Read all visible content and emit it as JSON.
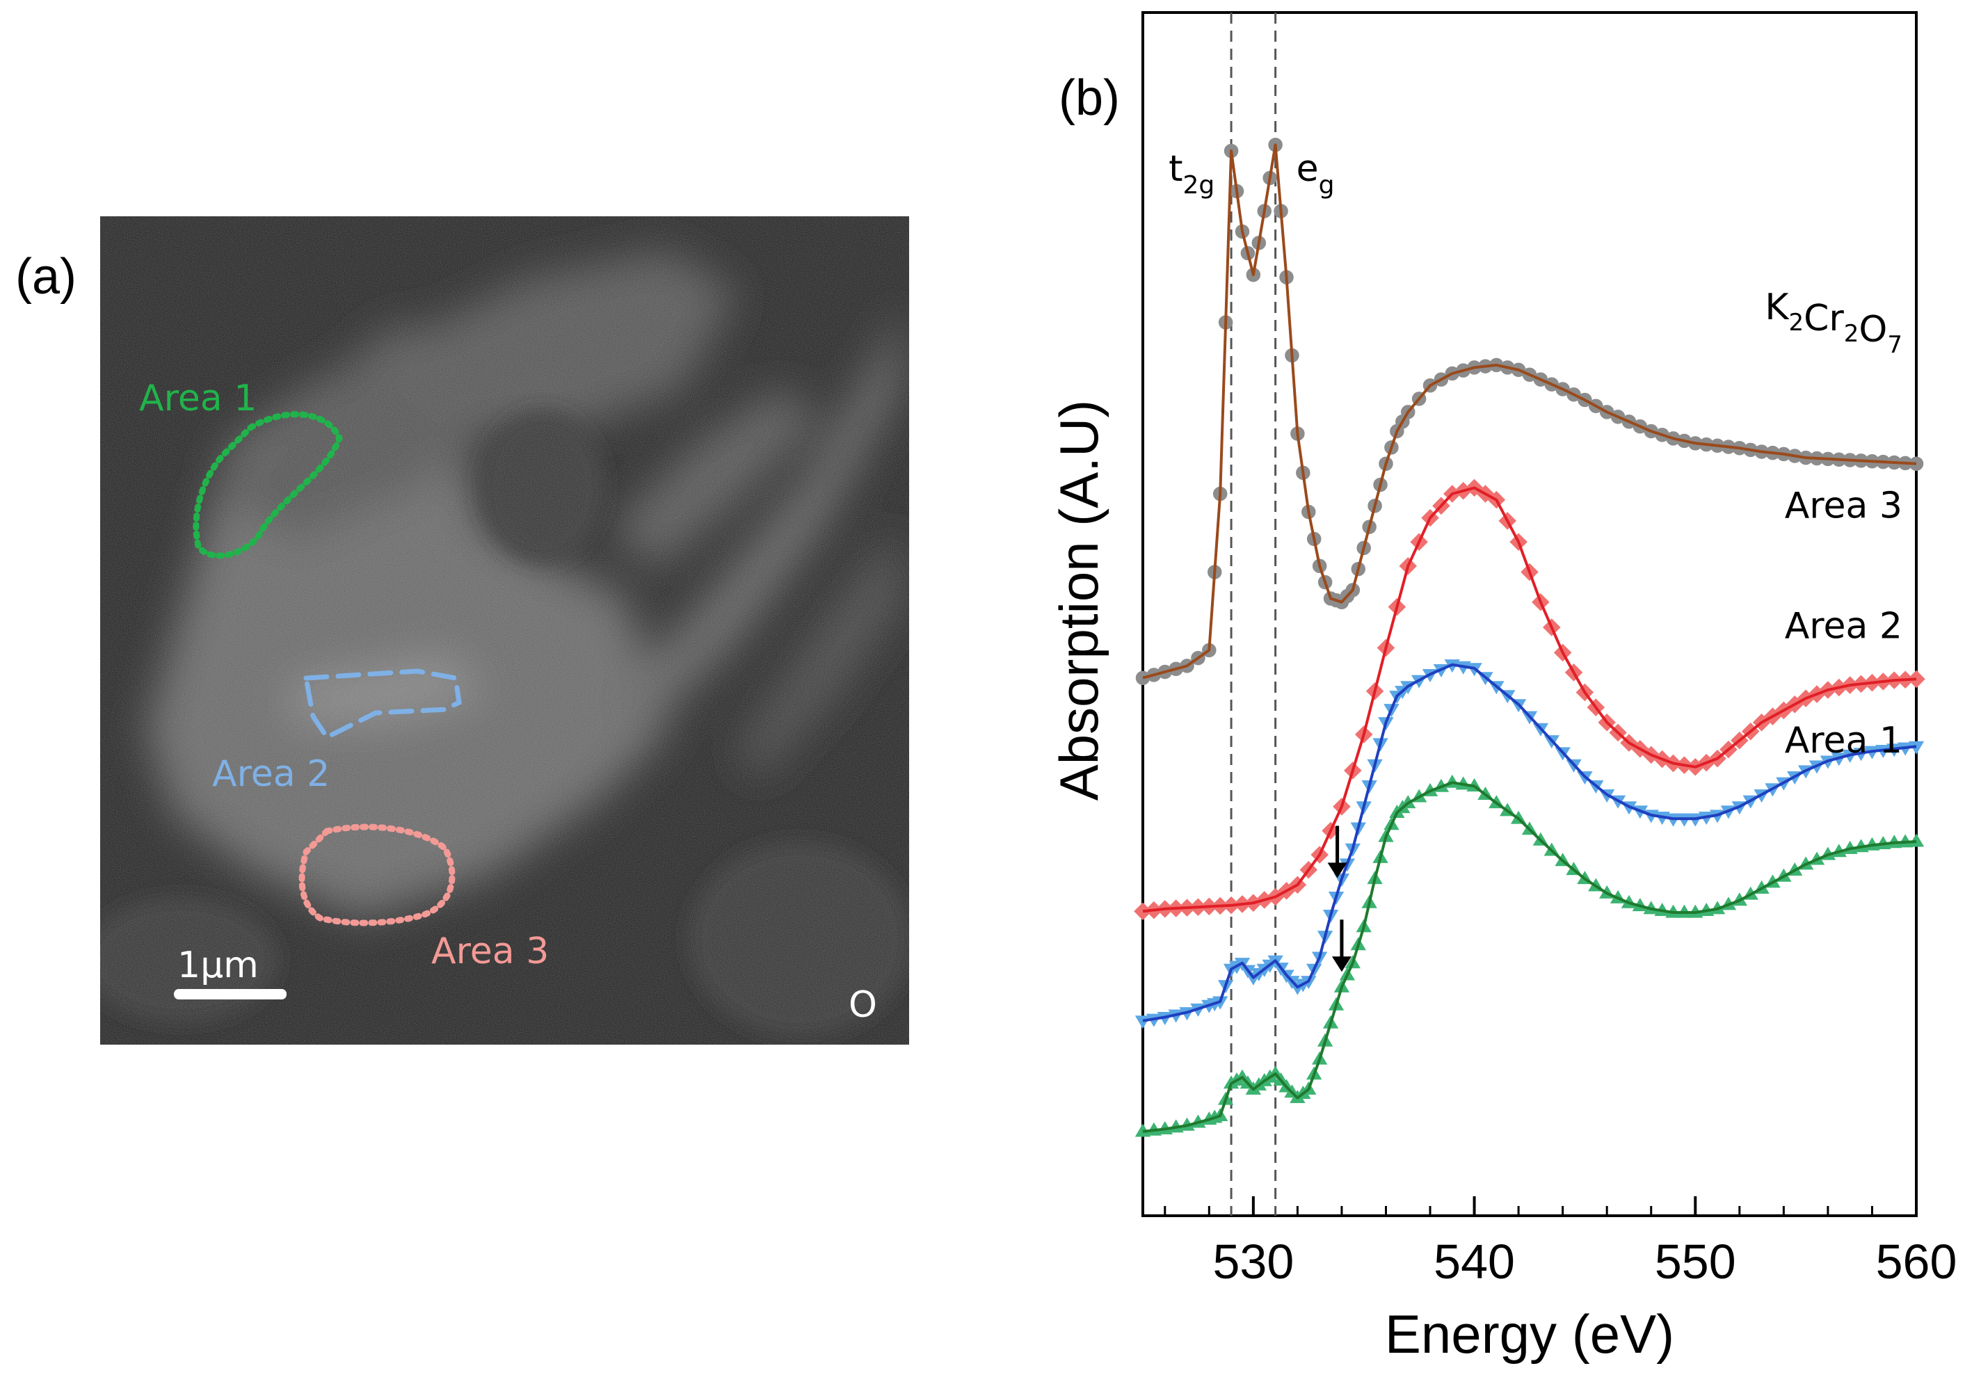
{
  "panel_a": {
    "label": "(a)",
    "scale_bar_label": "1µm",
    "element_label": "O",
    "regions": [
      {
        "name": "Area 1",
        "color": "#21b34b",
        "style": "dotted"
      },
      {
        "name": "Area 2",
        "color": "#7fb1e6",
        "style": "dashed"
      },
      {
        "name": "Area 3",
        "color": "#f39a96",
        "style": "dotted"
      }
    ]
  },
  "chart_data": {
    "type": "line",
    "panel_label": "(b)",
    "xlabel": "Energy (eV)",
    "ylabel": "Absorption (A.U)",
    "xlim": [
      525,
      560
    ],
    "ylim": [
      0,
      1
    ],
    "xticks": [
      530,
      540,
      550,
      560
    ],
    "reference_lines": [
      {
        "x": 529.0,
        "label": "t",
        "sub": "2g"
      },
      {
        "x": 531.0,
        "label": "e",
        "sub": "g"
      }
    ],
    "arrows": [
      {
        "x": 533.8,
        "series": "Area 2"
      },
      {
        "x": 534.0,
        "series": "Area 1"
      }
    ],
    "series": [
      {
        "name": "K2Cr2O7",
        "label_main": [
          "K",
          "Cr",
          "O"
        ],
        "label_subs": [
          "2",
          "2",
          "7"
        ],
        "line_color": "#9a4a1c",
        "marker_color": "#8c8c8c",
        "marker": "circle",
        "x": [
          525,
          526,
          527,
          528,
          528.5,
          529,
          529.5,
          530,
          530.5,
          531,
          531.5,
          532,
          532.5,
          533,
          533.5,
          534,
          534.5,
          535,
          535.5,
          536,
          536.5,
          537,
          538,
          539,
          540,
          541,
          542,
          543,
          544,
          545,
          546,
          547,
          548,
          549,
          550,
          551,
          552,
          553,
          554,
          555,
          556,
          557,
          558,
          559,
          560
        ],
        "y": [
          0.447,
          0.452,
          0.457,
          0.47,
          0.6,
          0.885,
          0.818,
          0.782,
          0.835,
          0.89,
          0.78,
          0.65,
          0.585,
          0.54,
          0.513,
          0.51,
          0.52,
          0.555,
          0.59,
          0.625,
          0.652,
          0.668,
          0.69,
          0.7,
          0.705,
          0.707,
          0.703,
          0.695,
          0.687,
          0.678,
          0.668,
          0.66,
          0.652,
          0.646,
          0.642,
          0.64,
          0.638,
          0.635,
          0.633,
          0.63,
          0.629,
          0.628,
          0.627,
          0.626,
          0.625
        ]
      },
      {
        "name": "Area 3",
        "label_main": [
          "Area 3"
        ],
        "label_subs": [],
        "line_color": "#e11f26",
        "marker_color": "#f07070",
        "marker": "diamond",
        "x": [
          525,
          526,
          527,
          528,
          529,
          530,
          531,
          532,
          533,
          534,
          535,
          536,
          537,
          538,
          539,
          540,
          541,
          542,
          543,
          544,
          545,
          546,
          547,
          548,
          549,
          550,
          551,
          552,
          553,
          554,
          555,
          556,
          557,
          558,
          559,
          560
        ],
        "y": [
          0.253,
          0.255,
          0.256,
          0.257,
          0.258,
          0.26,
          0.265,
          0.275,
          0.3,
          0.34,
          0.4,
          0.472,
          0.54,
          0.58,
          0.6,
          0.605,
          0.595,
          0.56,
          0.51,
          0.468,
          0.435,
          0.41,
          0.393,
          0.383,
          0.376,
          0.373,
          0.38,
          0.395,
          0.41,
          0.42,
          0.43,
          0.437,
          0.441,
          0.443,
          0.445,
          0.446
        ]
      },
      {
        "name": "Area 2",
        "label_main": [
          "Area 2"
        ],
        "label_subs": [],
        "line_color": "#1f3fbf",
        "marker_color": "#5aa6e6",
        "marker": "triangle-down",
        "x": [
          525,
          526,
          527,
          528,
          528.5,
          529,
          529.5,
          530,
          530.5,
          531,
          531.5,
          532,
          532.5,
          533,
          533.5,
          534,
          534.5,
          535,
          535.5,
          536,
          536.5,
          537,
          538,
          539,
          540,
          541,
          542,
          543,
          544,
          545,
          546,
          547,
          548,
          549,
          550,
          551,
          552,
          553,
          554,
          555,
          556,
          557,
          558,
          559,
          560
        ],
        "y": [
          0.162,
          0.165,
          0.169,
          0.175,
          0.178,
          0.205,
          0.21,
          0.198,
          0.205,
          0.212,
          0.2,
          0.19,
          0.195,
          0.215,
          0.25,
          0.28,
          0.305,
          0.34,
          0.375,
          0.41,
          0.432,
          0.44,
          0.45,
          0.458,
          0.455,
          0.44,
          0.425,
          0.405,
          0.385,
          0.365,
          0.35,
          0.34,
          0.333,
          0.33,
          0.33,
          0.333,
          0.34,
          0.35,
          0.36,
          0.37,
          0.378,
          0.383,
          0.386,
          0.388,
          0.39
        ]
      },
      {
        "name": "Area 1",
        "label_main": [
          "Area 1"
        ],
        "label_subs": [],
        "line_color": "#1f7a2e",
        "marker_color": "#3cb371",
        "marker": "triangle-up",
        "x": [
          525,
          526,
          527,
          528,
          528.5,
          529,
          529.5,
          530,
          530.5,
          531,
          531.5,
          532,
          532.5,
          533,
          533.5,
          534,
          534.5,
          535,
          535.5,
          536,
          536.5,
          537,
          538,
          539,
          540,
          541,
          542,
          543,
          544,
          545,
          546,
          547,
          548,
          549,
          550,
          551,
          552,
          553,
          554,
          555,
          556,
          557,
          558,
          559,
          560
        ],
        "y": [
          0.07,
          0.072,
          0.075,
          0.08,
          0.083,
          0.11,
          0.115,
          0.105,
          0.112,
          0.118,
          0.107,
          0.098,
          0.105,
          0.13,
          0.16,
          0.19,
          0.21,
          0.24,
          0.28,
          0.315,
          0.335,
          0.343,
          0.353,
          0.36,
          0.357,
          0.343,
          0.33,
          0.312,
          0.295,
          0.28,
          0.268,
          0.26,
          0.255,
          0.252,
          0.252,
          0.255,
          0.262,
          0.272,
          0.282,
          0.292,
          0.3,
          0.305,
          0.308,
          0.31,
          0.311
        ]
      }
    ]
  }
}
